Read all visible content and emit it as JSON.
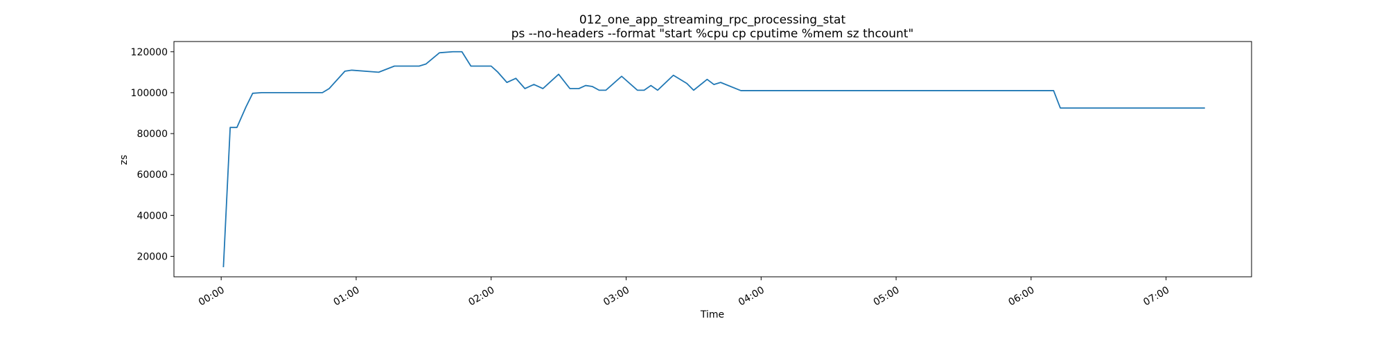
{
  "chart_data": {
    "type": "line",
    "title": "012_one_app_streaming_rpc_processing_stat",
    "subtitle": "ps --no-headers --format \"start %cpu cp cputime %mem sz thcount\"",
    "xlabel": "Time",
    "ylabel": "sz",
    "x_ticks": [
      "00:00",
      "01:00",
      "02:00",
      "03:00",
      "04:00",
      "05:00",
      "06:00",
      "07:00"
    ],
    "y_ticks": [
      "20000",
      "40000",
      "60000",
      "80000",
      "100000",
      "120000"
    ],
    "xlim": [
      "-00:21",
      "07:38"
    ],
    "ylim": [
      10000,
      125000
    ],
    "grid": false,
    "series": [
      {
        "color": "#1f77b4",
        "x": [
          "00:01",
          "00:04",
          "00:07",
          "00:11",
          "00:14",
          "00:18",
          "00:31",
          "00:45",
          "00:48",
          "00:55",
          "00:58",
          "01:10",
          "01:17",
          "01:28",
          "01:31",
          "01:37",
          "01:43",
          "01:47",
          "01:51",
          "02:00",
          "02:03",
          "02:07",
          "02:11",
          "02:15",
          "02:19",
          "02:23",
          "02:30",
          "02:35",
          "02:39",
          "02:42",
          "02:45",
          "02:48",
          "02:51",
          "02:58",
          "03:05",
          "03:08",
          "03:11",
          "03:14",
          "03:21",
          "03:27",
          "03:30",
          "03:36",
          "03:39",
          "03:42",
          "03:51",
          "06:10",
          "06:13",
          "07:17"
        ],
        "y": [
          15000,
          83000,
          83000,
          93000,
          99700,
          100000,
          100000,
          100000,
          102000,
          110500,
          111000,
          110000,
          113000,
          113000,
          114000,
          119500,
          120000,
          120000,
          113000,
          113000,
          110000,
          105000,
          107000,
          102000,
          104000,
          102000,
          109000,
          102000,
          102000,
          103500,
          103000,
          101200,
          101200,
          108000,
          101200,
          101200,
          103500,
          101200,
          108500,
          104500,
          101200,
          106500,
          104000,
          105000,
          101000,
          101000,
          92500,
          92500
        ]
      }
    ]
  }
}
